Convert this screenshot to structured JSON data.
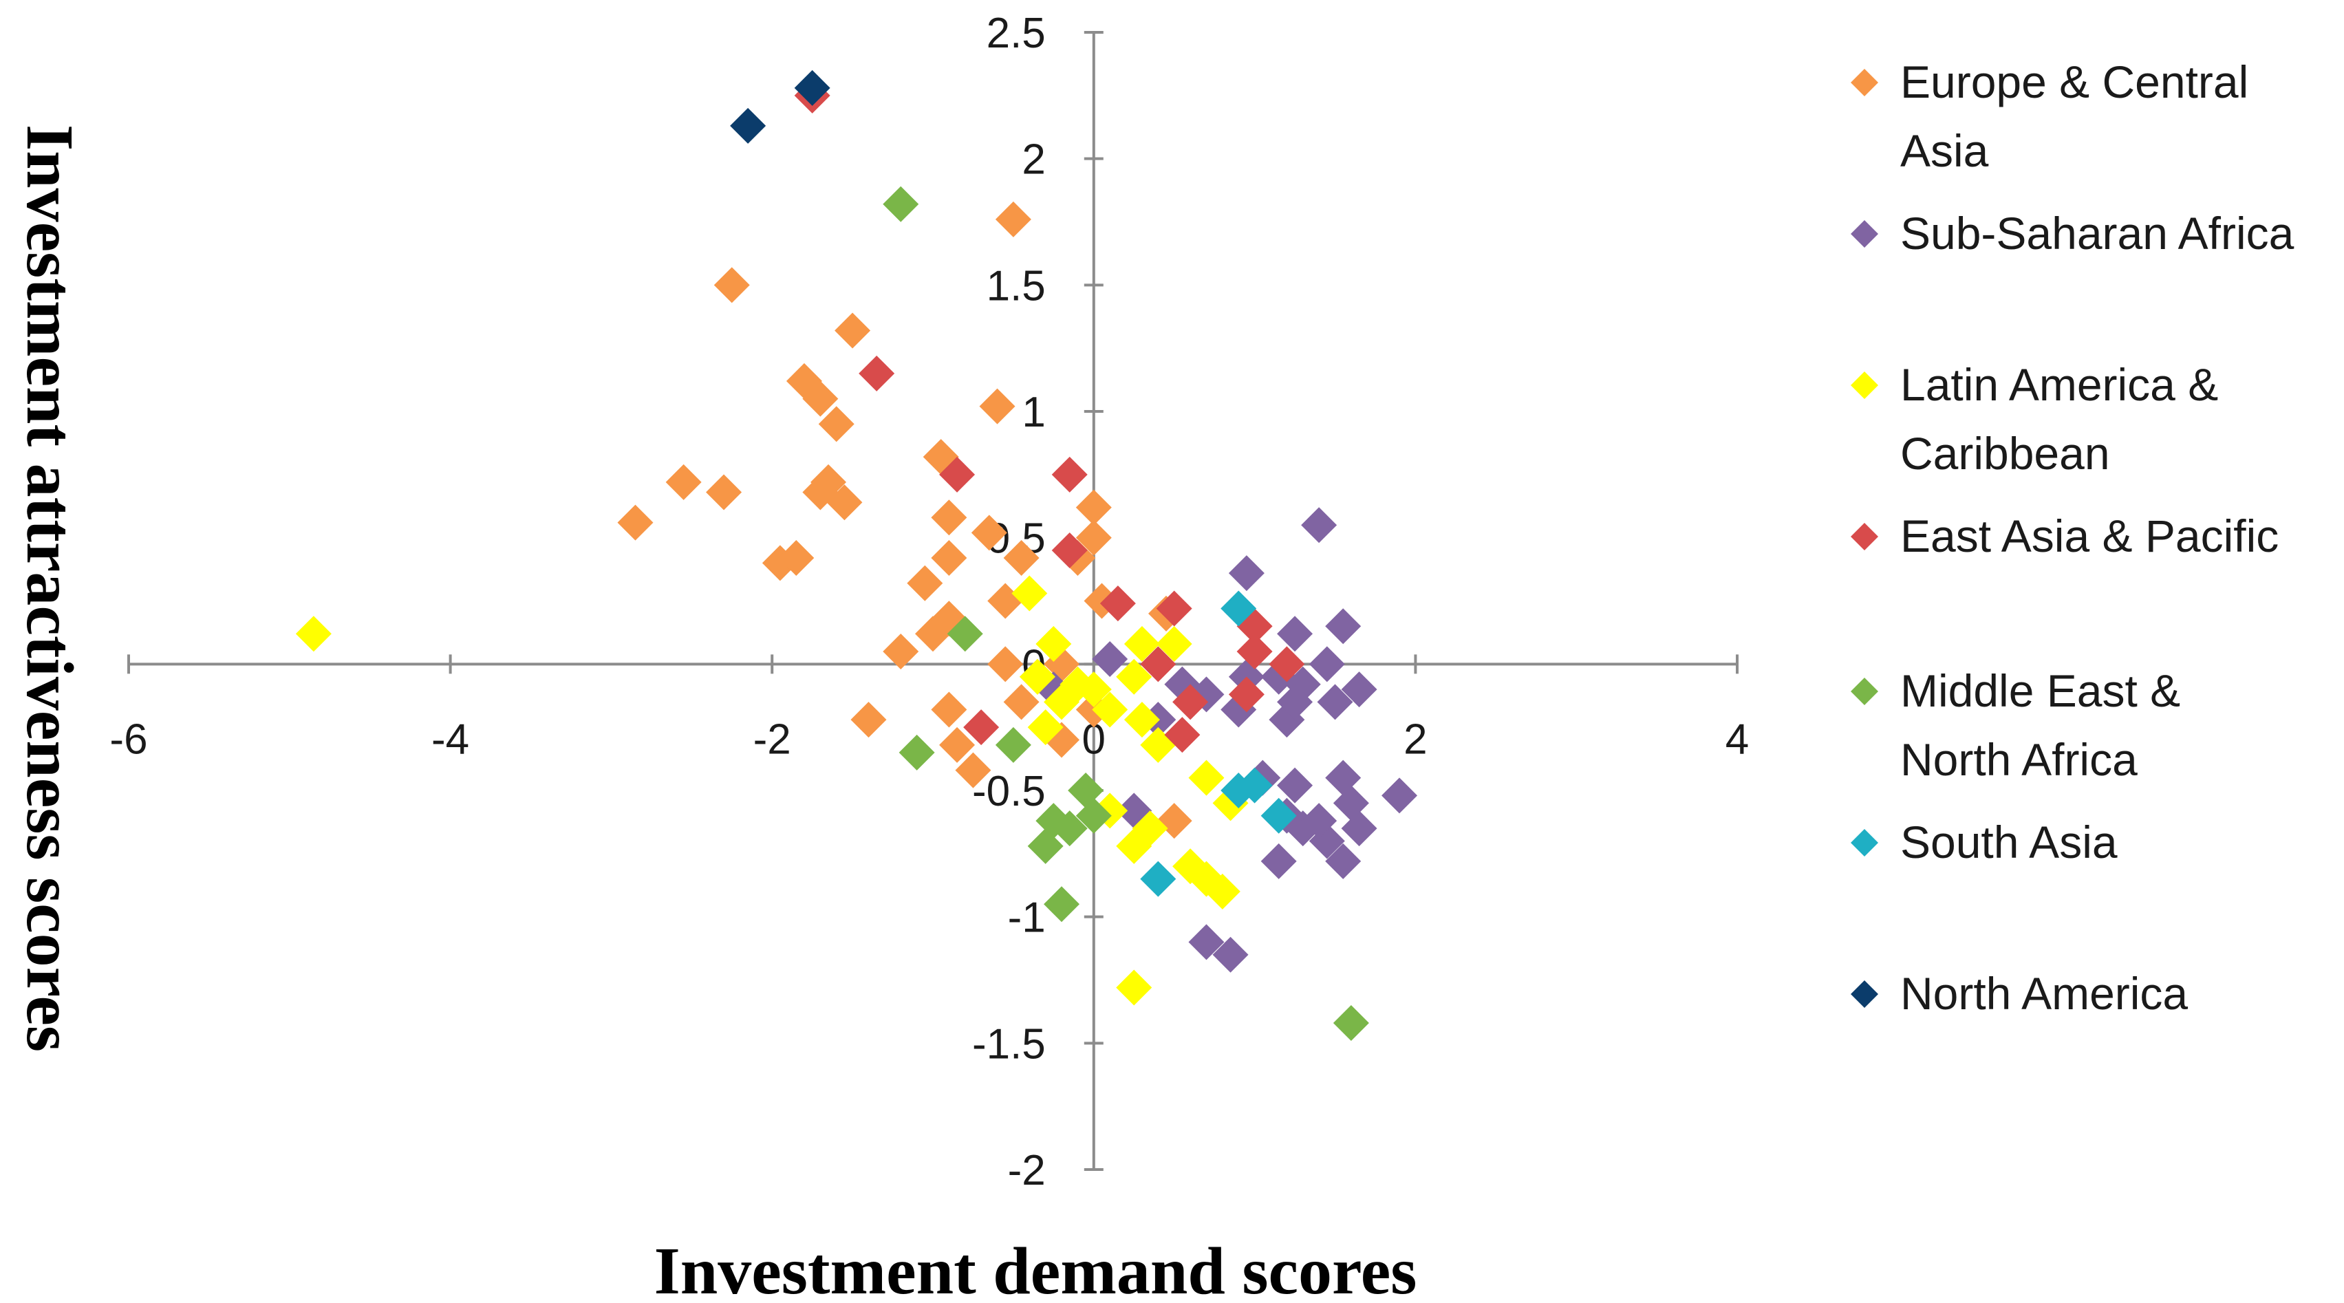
{
  "chart_data": {
    "type": "scatter",
    "xlabel": "Investment demand scores",
    "ylabel": "Investment attractiveness scores",
    "xlim": [
      -6,
      4
    ],
    "ylim": [
      -2,
      2.5
    ],
    "x_ticks": [
      -6,
      -4,
      -2,
      0,
      2,
      4
    ],
    "y_ticks": [
      2.5,
      2,
      1.5,
      1,
      0.5,
      0,
      -0.5,
      -1,
      -1.5,
      -2
    ],
    "x_tick_labels": [
      "-6",
      "-4",
      "-2",
      "0",
      "2",
      "4"
    ],
    "y_tick_labels": [
      "2.5",
      "2",
      "1.5",
      "1",
      "0.5",
      "0",
      "-0.5",
      "-1",
      "-1.5",
      "-2"
    ],
    "grid": false,
    "legend_position": "right",
    "marker": "diamond",
    "series": [
      {
        "name": "Europe & Central Asia",
        "color": "#F79646",
        "legend_lines": [
          "Europe & Central",
          "Asia"
        ],
        "points": [
          [
            -2.25,
            1.5
          ],
          [
            -1.5,
            1.32
          ],
          [
            -1.8,
            1.12
          ],
          [
            -1.7,
            1.05
          ],
          [
            -1.6,
            0.95
          ],
          [
            -2.55,
            0.72
          ],
          [
            -2.3,
            0.68
          ],
          [
            -2.85,
            0.56
          ],
          [
            -1.65,
            0.72
          ],
          [
            -1.55,
            0.64
          ],
          [
            -1.7,
            0.68
          ],
          [
            -1.95,
            0.4
          ],
          [
            -1.85,
            0.42
          ],
          [
            -0.95,
            0.82
          ],
          [
            -0.6,
            1.02
          ],
          [
            -0.5,
            1.76
          ],
          [
            -0.9,
            0.58
          ],
          [
            -0.65,
            0.52
          ],
          [
            -0.9,
            0.42
          ],
          [
            -1.05,
            0.32
          ],
          [
            -0.9,
            0.18
          ],
          [
            -1.0,
            0.12
          ],
          [
            -1.2,
            0.05
          ],
          [
            -0.55,
            0.25
          ],
          [
            -0.45,
            0.42
          ],
          [
            0.0,
            0.62
          ],
          [
            0.0,
            0.5
          ],
          [
            -0.1,
            0.42
          ],
          [
            0.05,
            0.25
          ],
          [
            -0.55,
            0.0
          ],
          [
            -0.35,
            -0.05
          ],
          [
            -0.9,
            -0.18
          ],
          [
            -0.85,
            -0.32
          ],
          [
            -0.75,
            -0.42
          ],
          [
            -0.2,
            -0.3
          ],
          [
            -0.45,
            -0.15
          ],
          [
            -1.4,
            -0.22
          ],
          [
            -0.2,
            0.0
          ],
          [
            0.5,
            -0.62
          ],
          [
            0.45,
            0.2
          ],
          [
            0.0,
            -0.18
          ]
        ]
      },
      {
        "name": "Sub-Saharan Africa",
        "color": "#8064A2",
        "legend_lines": [
          "Sub-Saharan Africa"
        ],
        "points": [
          [
            1.4,
            0.55
          ],
          [
            0.95,
            0.36
          ],
          [
            1.25,
            0.12
          ],
          [
            1.55,
            0.15
          ],
          [
            0.1,
            0.02
          ],
          [
            1.45,
            0.0
          ],
          [
            0.95,
            -0.05
          ],
          [
            1.15,
            -0.05
          ],
          [
            1.3,
            -0.08
          ],
          [
            1.65,
            -0.1
          ],
          [
            1.5,
            -0.15
          ],
          [
            0.9,
            -0.18
          ],
          [
            1.2,
            -0.22
          ],
          [
            1.25,
            -0.15
          ],
          [
            0.4,
            -0.22
          ],
          [
            0.55,
            -0.08
          ],
          [
            0.7,
            -0.12
          ],
          [
            1.05,
            -0.45
          ],
          [
            1.25,
            -0.48
          ],
          [
            1.55,
            -0.45
          ],
          [
            1.6,
            -0.55
          ],
          [
            1.9,
            -0.52
          ],
          [
            1.3,
            -0.65
          ],
          [
            1.45,
            -0.7
          ],
          [
            1.65,
            -0.65
          ],
          [
            1.55,
            -0.78
          ],
          [
            1.4,
            -0.62
          ],
          [
            1.2,
            -0.6
          ],
          [
            1.15,
            -0.78
          ],
          [
            0.25,
            -0.58
          ],
          [
            0.7,
            -1.1
          ],
          [
            0.85,
            -1.15
          ],
          [
            -0.25,
            -0.1
          ]
        ]
      },
      {
        "name": "Latin America & Caribbean",
        "color": "#FFFF00",
        "legend_lines": [
          "Latin America &",
          "Caribbean"
        ],
        "points": [
          [
            -4.85,
            0.12
          ],
          [
            -0.4,
            0.28
          ],
          [
            -0.25,
            0.08
          ],
          [
            -0.35,
            -0.05
          ],
          [
            -0.1,
            -0.08
          ],
          [
            0.0,
            -0.1
          ],
          [
            -0.2,
            -0.15
          ],
          [
            0.1,
            -0.18
          ],
          [
            0.3,
            -0.22
          ],
          [
            -0.3,
            -0.25
          ],
          [
            0.4,
            -0.32
          ],
          [
            0.3,
            0.08
          ],
          [
            0.5,
            0.08
          ],
          [
            0.25,
            -0.05
          ],
          [
            0.7,
            -0.45
          ],
          [
            0.85,
            -0.55
          ],
          [
            0.35,
            -0.65
          ],
          [
            0.25,
            -0.72
          ],
          [
            0.6,
            -0.8
          ],
          [
            0.7,
            -0.85
          ],
          [
            0.8,
            -0.9
          ],
          [
            0.25,
            -1.28
          ],
          [
            0.1,
            -0.58
          ]
        ]
      },
      {
        "name": "East Asia & Pacific",
        "color": "#D84B4B",
        "legend_lines": [
          "East Asia & Pacific"
        ],
        "points": [
          [
            -1.75,
            2.25
          ],
          [
            -1.35,
            1.15
          ],
          [
            -0.85,
            0.75
          ],
          [
            -0.15,
            0.75
          ],
          [
            -0.15,
            0.45
          ],
          [
            0.15,
            0.24
          ],
          [
            0.5,
            0.22
          ],
          [
            1.0,
            0.15
          ],
          [
            1.0,
            0.05
          ],
          [
            1.2,
            0.0
          ],
          [
            0.4,
            0.0
          ],
          [
            0.6,
            -0.15
          ],
          [
            0.95,
            -0.12
          ],
          [
            0.55,
            -0.28
          ],
          [
            -0.7,
            -0.25
          ]
        ]
      },
      {
        "name": "Middle East & North Africa",
        "color": "#7AB648",
        "legend_lines": [
          "Middle East &",
          "North Africa"
        ],
        "points": [
          [
            -1.2,
            1.82
          ],
          [
            -0.8,
            0.12
          ],
          [
            -1.1,
            -0.35
          ],
          [
            -0.5,
            -0.32
          ],
          [
            -0.05,
            -0.5
          ],
          [
            0.0,
            -0.6
          ],
          [
            -0.25,
            -0.62
          ],
          [
            -0.15,
            -0.65
          ],
          [
            -0.3,
            -0.72
          ],
          [
            -0.2,
            -0.95
          ],
          [
            1.6,
            -1.42
          ]
        ]
      },
      {
        "name": "South Asia",
        "color": "#1FAFC4",
        "legend_lines": [
          "South Asia"
        ],
        "points": [
          [
            0.9,
            0.22
          ],
          [
            0.9,
            -0.5
          ],
          [
            1.0,
            -0.48
          ],
          [
            1.15,
            -0.6
          ],
          [
            0.4,
            -0.85
          ]
        ]
      },
      {
        "name": "North America",
        "color": "#0B3C6B",
        "legend_lines": [
          "North America"
        ],
        "points": [
          [
            -2.15,
            2.13
          ],
          [
            -1.75,
            2.28
          ]
        ]
      }
    ]
  }
}
